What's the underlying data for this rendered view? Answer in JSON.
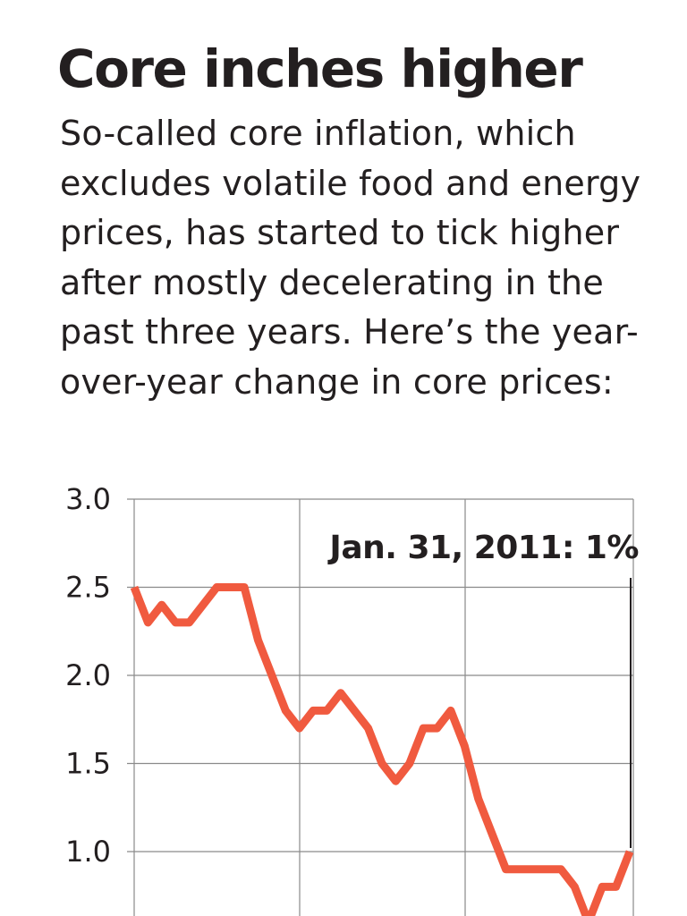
{
  "header": {
    "title": "Core inches higher",
    "subtitle": "So-called core inflation, which excludes volatile food and energy prices, has started to tick higher after mostly decelerating in the past three years. Here’s the year-over-year change in core prices:"
  },
  "chart_data": {
    "type": "line",
    "title": "Core inches higher",
    "xlabel": "",
    "ylabel": "",
    "ylim": [
      0.6,
      3.0
    ],
    "y_ticks": [
      1.0,
      1.5,
      2.0,
      2.5,
      3.0
    ],
    "y_tick_labels": [
      "1.0",
      "1.5",
      "2.0",
      "2.5",
      "3.0"
    ],
    "grid": true,
    "series": [
      {
        "color": "#f05a3f",
        "values": [
          2.5,
          2.3,
          2.4,
          2.3,
          2.3,
          2.4,
          2.5,
          2.5,
          2.5,
          2.2,
          2.0,
          1.8,
          1.7,
          1.8,
          1.8,
          1.9,
          1.8,
          1.7,
          1.5,
          1.4,
          1.5,
          1.7,
          1.7,
          1.8,
          1.6,
          1.3,
          1.1,
          0.9,
          0.9,
          0.9,
          0.9,
          0.9,
          0.8,
          0.6,
          0.8,
          0.8,
          1.0
        ]
      }
    ],
    "annotation": {
      "text": "Jan. 31, 2011: 1%",
      "point_index": 36,
      "value": 1.0
    }
  }
}
